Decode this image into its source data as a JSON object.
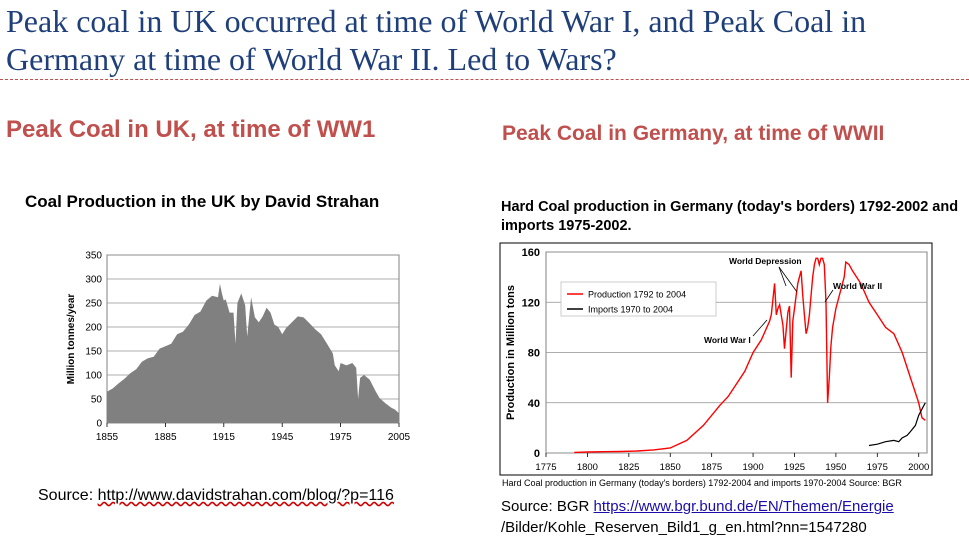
{
  "slide": {
    "title": "Peak coal in UK occurred at time of World War I, and Peak Coal in Germany at time of World War II. Led to Wars?",
    "left_heading": "Peak Coal in UK, at time of  WW1",
    "right_heading": "Peak Coal in Germany, at time of WWII",
    "left_source_prefix": "Source: ",
    "left_source_url": "http://www.davidstrahan.com/blog/?p=116",
    "right_source_prefix": "Source: BGR ",
    "right_source_url_1": "https://www.bgr.bund.de/EN/Themen/Energie",
    "right_source_url_2": "/Bilder/Kohle_Reserven_Bild1_g_en.html?nn=1547280",
    "right_caption": "Hard Coal production in Germany (today's borders) 1792-2004 and imports 1970-2004 Source: BGR",
    "colors": {
      "title": "#1f3f7a",
      "heading": "#c0504d",
      "uk_area": "#808080",
      "production": "#ff0000",
      "imports": "#000000"
    }
  },
  "chart_data": [
    {
      "type": "area",
      "title": "Coal Production in the UK by David Strahan",
      "xlabel": "",
      "ylabel": "Million tonnes/year",
      "xlim": [
        1855,
        2005
      ],
      "ylim": [
        0,
        350
      ],
      "x_ticks": [
        1855,
        1885,
        1915,
        1945,
        1975,
        2005
      ],
      "y_ticks": [
        0,
        50,
        100,
        150,
        200,
        250,
        300,
        350
      ],
      "grid": true,
      "x": [
        1855,
        1858,
        1861,
        1864,
        1867,
        1870,
        1873,
        1876,
        1879,
        1882,
        1885,
        1888,
        1891,
        1894,
        1897,
        1900,
        1903,
        1906,
        1909,
        1912,
        1913,
        1914,
        1915,
        1916,
        1918,
        1920,
        1921,
        1922,
        1924,
        1926,
        1927,
        1929,
        1931,
        1933,
        1935,
        1937,
        1939,
        1941,
        1943,
        1945,
        1947,
        1950,
        1953,
        1956,
        1959,
        1962,
        1965,
        1968,
        1971,
        1972,
        1974,
        1975,
        1978,
        1981,
        1983,
        1984,
        1985,
        1987,
        1990,
        1993,
        1995,
        1998,
        2001,
        2003,
        2005
      ],
      "values": [
        65,
        72,
        83,
        92,
        104,
        112,
        128,
        135,
        138,
        155,
        160,
        165,
        185,
        190,
        205,
        225,
        232,
        255,
        265,
        262,
        290,
        270,
        255,
        258,
        230,
        230,
        165,
        250,
        270,
        245,
        180,
        262,
        220,
        210,
        222,
        240,
        230,
        205,
        200,
        185,
        198,
        210,
        222,
        220,
        208,
        195,
        185,
        165,
        145,
        120,
        108,
        125,
        120,
        125,
        115,
        50,
        94,
        100,
        90,
        66,
        52,
        41,
        32,
        28,
        20
      ]
    },
    {
      "type": "line",
      "title": "Hard Coal production in Germany (today's borders) 1792-2002 and imports 1975-2002.",
      "xlabel": "",
      "ylabel": "Production in Million tons",
      "xlim": [
        1775,
        2005
      ],
      "ylim": [
        0,
        160
      ],
      "x_ticks": [
        1775,
        1800,
        1825,
        1850,
        1875,
        1900,
        1925,
        1950,
        1975,
        2000
      ],
      "y_ticks": [
        0,
        40,
        80,
        120,
        160
      ],
      "grid": true,
      "legend": "top-left",
      "annotations": [
        "World Depression",
        "World War II",
        "World War I"
      ],
      "series": [
        {
          "name": "Production 1792 to 2004",
          "x": [
            1792,
            1800,
            1810,
            1820,
            1830,
            1840,
            1850,
            1860,
            1870,
            1875,
            1880,
            1885,
            1890,
            1895,
            1900,
            1905,
            1910,
            1911,
            1913,
            1914,
            1915,
            1916,
            1917,
            1918,
            1919,
            1920,
            1921,
            1922,
            1923,
            1924,
            1925,
            1926,
            1927,
            1928,
            1929,
            1930,
            1931,
            1932,
            1933,
            1934,
            1935,
            1936,
            1937,
            1938,
            1939,
            1940,
            1941,
            1942,
            1943,
            1944,
            1945,
            1946,
            1947,
            1948,
            1950,
            1952,
            1954,
            1955,
            1956,
            1958,
            1960,
            1965,
            1970,
            1975,
            1980,
            1985,
            1990,
            1995,
            2000,
            2002,
            2004
          ],
          "values": [
            0.5,
            0.8,
            1,
            1.2,
            1.6,
            2.5,
            4,
            10,
            22,
            30,
            38,
            45,
            55,
            65,
            80,
            90,
            105,
            110,
            135,
            110,
            115,
            118,
            110,
            102,
            83,
            98,
            112,
            117,
            60,
            105,
            115,
            125,
            135,
            140,
            145,
            125,
            110,
            95,
            100,
            110,
            125,
            140,
            150,
            155,
            155,
            150,
            155,
            155,
            150,
            120,
            40,
            60,
            85,
            100,
            115,
            125,
            135,
            140,
            152,
            150,
            145,
            135,
            120,
            110,
            100,
            95,
            80,
            60,
            40,
            28,
            26
          ]
        },
        {
          "name": "Imports 1970 to 2004",
          "x": [
            1970,
            1975,
            1980,
            1985,
            1988,
            1990,
            1993,
            1995,
            1998,
            2000,
            2002,
            2004
          ],
          "values": [
            6,
            7,
            9,
            10,
            9,
            12,
            14,
            17,
            22,
            30,
            35,
            40
          ]
        }
      ]
    }
  ]
}
